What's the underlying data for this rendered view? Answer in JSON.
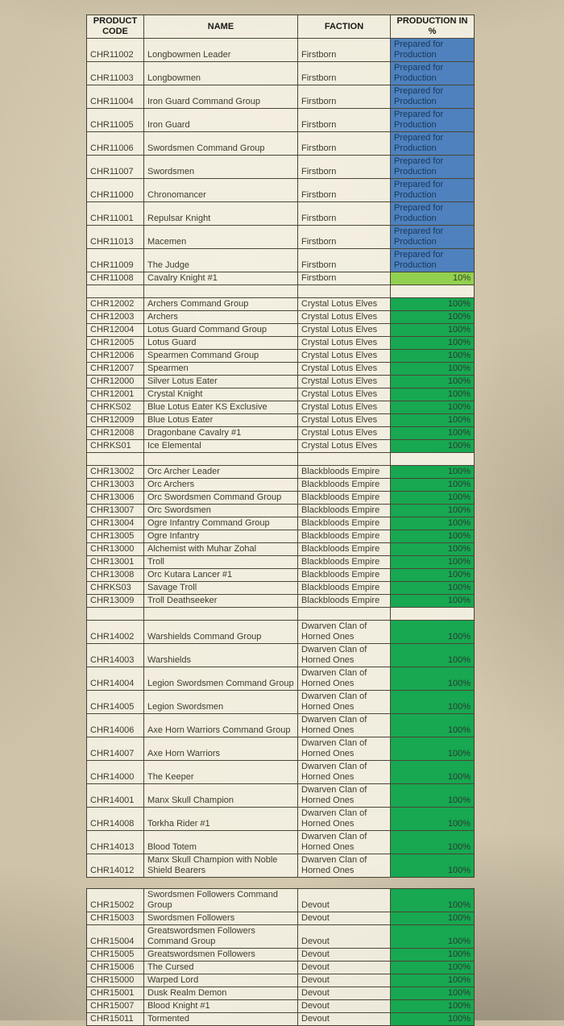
{
  "page": {
    "background_base": "#cfc4aa"
  },
  "table": {
    "headers": [
      "PRODUCT\nCODE",
      "NAME",
      "FACTION",
      "PRODUCTION IN\n%"
    ],
    "status_colors": {
      "prepared_bg": "#4e81bd",
      "prepared_text": "#17375e",
      "full_bg": "#17a851",
      "partial_bg": "#92d050"
    },
    "main_rows": [
      {
        "code": "CHR11002",
        "name": "Longbowmen Leader",
        "faction": "Firstborn",
        "prod": "Prepared for\nProduction",
        "status": "prepared"
      },
      {
        "code": "CHR11003",
        "name": "Longbowmen",
        "faction": "Firstborn",
        "prod": "Prepared for\nProduction",
        "status": "prepared"
      },
      {
        "code": "CHR11004",
        "name": "Iron Guard Command Group",
        "faction": "Firstborn",
        "prod": "Prepared for\nProduction",
        "status": "prepared"
      },
      {
        "code": "CHR11005",
        "name": "Iron Guard",
        "faction": "Firstborn",
        "prod": "Prepared for\nProduction",
        "status": "prepared"
      },
      {
        "code": "CHR11006",
        "name": "Swordsmen Command Group",
        "faction": "Firstborn",
        "prod": "Prepared for\nProduction",
        "status": "prepared"
      },
      {
        "code": "CHR11007",
        "name": "Swordsmen",
        "faction": "Firstborn",
        "prod": "Prepared for\nProduction",
        "status": "prepared"
      },
      {
        "code": "CHR11000",
        "name": "Chronomancer",
        "faction": "Firstborn",
        "prod": "Prepared for\nProduction",
        "status": "prepared"
      },
      {
        "code": "CHR11001",
        "name": "Repulsar Knight",
        "faction": "Firstborn",
        "prod": "Prepared for\nProduction",
        "status": "prepared"
      },
      {
        "code": "CHR11013",
        "name": "Macemen",
        "faction": "Firstborn",
        "prod": "Prepared for\nProduction",
        "status": "prepared"
      },
      {
        "code": "CHR11009",
        "name": "The Judge",
        "faction": "Firstborn",
        "prod": "Prepared for\nProduction",
        "status": "prepared"
      },
      {
        "code": "CHR11008",
        "name": "Cavalry Knight #1",
        "faction": "Firstborn",
        "prod": "10%",
        "status": "partial"
      },
      {
        "spacer": true
      },
      {
        "code": "CHR12002",
        "name": "Archers Command Group",
        "faction": "Crystal Lotus Elves",
        "prod": "100%",
        "status": "full"
      },
      {
        "code": "CHR12003",
        "name": "Archers",
        "faction": "Crystal Lotus Elves",
        "prod": "100%",
        "status": "full"
      },
      {
        "code": "CHR12004",
        "name": "Lotus Guard Command Group",
        "faction": "Crystal Lotus Elves",
        "prod": "100%",
        "status": "full"
      },
      {
        "code": "CHR12005",
        "name": "Lotus Guard",
        "faction": "Crystal Lotus Elves",
        "prod": "100%",
        "status": "full"
      },
      {
        "code": "CHR12006",
        "name": "Spearmen Command Group",
        "faction": "Crystal Lotus Elves",
        "prod": "100%",
        "status": "full"
      },
      {
        "code": "CHR12007",
        "name": "Spearmen",
        "faction": "Crystal Lotus Elves",
        "prod": "100%",
        "status": "full"
      },
      {
        "code": "CHR12000",
        "name": "Silver Lotus Eater",
        "faction": "Crystal Lotus Elves",
        "prod": "100%",
        "status": "full"
      },
      {
        "code": "CHR12001",
        "name": "Crystal Knight",
        "faction": "Crystal Lotus Elves",
        "prod": "100%",
        "status": "full"
      },
      {
        "code": "CHRKS02",
        "name": "Blue Lotus Eater KS Exclusive",
        "faction": "Crystal Lotus Elves",
        "prod": "100%",
        "status": "full"
      },
      {
        "code": "CHR12009",
        "name": "Blue Lotus Eater",
        "faction": "Crystal Lotus Elves",
        "prod": "100%",
        "status": "full"
      },
      {
        "code": "CHR12008",
        "name": "Dragonbane Cavalry #1",
        "faction": "Crystal Lotus Elves",
        "prod": "100%",
        "status": "full"
      },
      {
        "code": "CHRKS01",
        "name": "Ice Elemental",
        "faction": "Crystal Lotus Elves",
        "prod": "100%",
        "status": "full"
      },
      {
        "spacer": true
      },
      {
        "code": "CHR13002",
        "name": "Orc Archer Leader",
        "faction": "Blackbloods Empire",
        "prod": "100%",
        "status": "full"
      },
      {
        "code": "CHR13003",
        "name": "Orc Archers",
        "faction": "Blackbloods Empire",
        "prod": "100%",
        "status": "full"
      },
      {
        "code": "CHR13006",
        "name": "Orc Swordsmen Command Group",
        "faction": "Blackbloods Empire",
        "prod": "100%",
        "status": "full"
      },
      {
        "code": "CHR13007",
        "name": "Orc Swordsmen",
        "faction": "Blackbloods Empire",
        "prod": "100%",
        "status": "full"
      },
      {
        "code": "CHR13004",
        "name": "Ogre Infantry Command Group",
        "faction": "Blackbloods Empire",
        "prod": "100%",
        "status": "full"
      },
      {
        "code": "CHR13005",
        "name": "Ogre Infantry",
        "faction": "Blackbloods Empire",
        "prod": "100%",
        "status": "full"
      },
      {
        "code": "CHR13000",
        "name": "Alchemist with Muhar Zohal",
        "faction": "Blackbloods Empire",
        "prod": "100%",
        "status": "full"
      },
      {
        "code": "CHR13001",
        "name": "Troll",
        "faction": "Blackbloods Empire",
        "prod": "100%",
        "status": "full"
      },
      {
        "code": "CHR13008",
        "name": "Orc Kutara Lancer #1",
        "faction": "Blackbloods Empire",
        "prod": "100%",
        "status": "full"
      },
      {
        "code": "CHRKS03",
        "name": "Savage Troll",
        "faction": "Blackbloods Empire",
        "prod": "100%",
        "status": "full"
      },
      {
        "code": "CHR13009",
        "name": "Troll Deathseeker",
        "faction": "Blackbloods Empire",
        "prod": "100%",
        "status": "full"
      },
      {
        "spacer": true
      },
      {
        "code": "CHR14002",
        "name": "Warshields Command Group",
        "faction": "Dwarven Clan of\nHorned Ones",
        "prod": "100%",
        "status": "full"
      },
      {
        "code": "CHR14003",
        "name": "Warshields",
        "faction": "Dwarven Clan of\nHorned Ones",
        "prod": "100%",
        "status": "full"
      },
      {
        "code": "CHR14004",
        "name": "Legion Swordsmen Command Group",
        "faction": "Dwarven Clan of\nHorned Ones",
        "prod": "100%",
        "status": "full"
      },
      {
        "code": "CHR14005",
        "name": "Legion Swordsmen",
        "faction": "Dwarven Clan of\nHorned Ones",
        "prod": "100%",
        "status": "full"
      },
      {
        "code": "CHR14006",
        "name": "Axe Horn Warriors Command Group",
        "faction": "Dwarven Clan of\nHorned Ones",
        "prod": "100%",
        "status": "full"
      },
      {
        "code": "CHR14007",
        "name": "Axe Horn Warriors",
        "faction": "Dwarven Clan of\nHorned Ones",
        "prod": "100%",
        "status": "full"
      },
      {
        "code": "CHR14000",
        "name": "The Keeper",
        "faction": "Dwarven Clan of\nHorned Ones",
        "prod": "100%",
        "status": "full"
      },
      {
        "code": "CHR14001",
        "name": "Manx Skull Champion",
        "faction": "Dwarven Clan of\nHorned Ones",
        "prod": "100%",
        "status": "full"
      },
      {
        "code": "CHR14008",
        "name": "Torkha Rider #1",
        "faction": "Dwarven Clan of\nHorned Ones",
        "prod": "100%",
        "status": "full"
      },
      {
        "code": "CHR14013",
        "name": "Blood Totem",
        "faction": "Dwarven Clan of\nHorned Ones",
        "prod": "100%",
        "status": "full"
      },
      {
        "code": "CHR14012",
        "name": "Manx Skull Champion with Noble\nShield Bearers",
        "faction": "Dwarven Clan of\nHorned Ones",
        "prod": "100%",
        "status": "full"
      }
    ],
    "devout_rows": [
      {
        "code": "CHR15002",
        "name": "Swordsmen Followers Command\nGroup",
        "faction": "Devout",
        "prod": "100%",
        "status": "full"
      },
      {
        "code": "CHR15003",
        "name": "Swordsmen Followers",
        "faction": "Devout",
        "prod": "100%",
        "status": "full"
      },
      {
        "code": "CHR15004",
        "name": "Greatswordsmen Followers\nCommand Group",
        "faction": "Devout",
        "prod": "100%",
        "status": "full"
      },
      {
        "code": "CHR15005",
        "name": "Greatswordsmen Followers",
        "faction": "Devout",
        "prod": "100%",
        "status": "full"
      },
      {
        "code": "CHR15006",
        "name": "The Cursed",
        "faction": "Devout",
        "prod": "100%",
        "status": "full"
      },
      {
        "code": "CHR15000",
        "name": "Warped Lord",
        "faction": "Devout",
        "prod": "100%",
        "status": "full"
      },
      {
        "code": "CHR15001",
        "name": "Dusk Realm Demon",
        "faction": "Devout",
        "prod": "100%",
        "status": "full"
      },
      {
        "code": "CHR15007",
        "name": "Blood Knight #1",
        "faction": "Devout",
        "prod": "100%",
        "status": "full"
      },
      {
        "code": "CHR15011",
        "name": "Tormented",
        "faction": "Devout",
        "prod": "100%",
        "status": "full"
      }
    ]
  }
}
